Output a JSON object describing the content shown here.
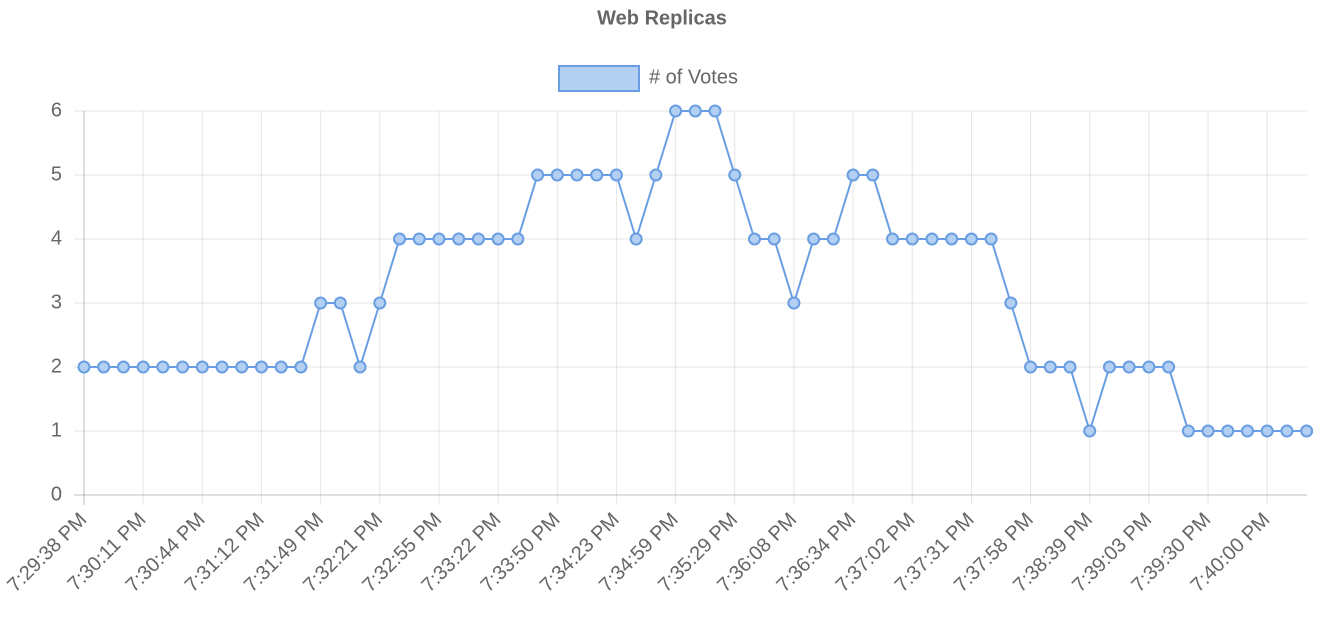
{
  "chart_data": {
    "type": "line",
    "title": "Web Replicas",
    "legend": {
      "position": "top",
      "entries": [
        "# of Votes"
      ]
    },
    "x_tick_labels": [
      "7:29:38 PM",
      "7:30:11 PM",
      "7:30:44 PM",
      "7:31:12 PM",
      "7:31:49 PM",
      "7:32:21 PM",
      "7:32:55 PM",
      "7:33:22 PM",
      "7:33:50 PM",
      "7:34:23 PM",
      "7:34:59 PM",
      "7:35:29 PM",
      "7:36:08 PM",
      "7:36:34 PM",
      "7:37:02 PM",
      "7:37:31 PM",
      "7:37:58 PM",
      "7:38:39 PM",
      "7:39:03 PM",
      "7:39:30 PM",
      "7:40:00 PM"
    ],
    "x_tick_every": 3,
    "ylim": [
      0,
      6
    ],
    "y_ticks": [
      0,
      1,
      2,
      3,
      4,
      5,
      6
    ],
    "grid": true,
    "series": [
      {
        "name": "# of Votes",
        "color": "#6a9ee2",
        "fill_color": "#b3cff2",
        "values": [
          2,
          2,
          2,
          2,
          2,
          2,
          2,
          2,
          2,
          2,
          2,
          2,
          3,
          3,
          2,
          3,
          4,
          4,
          4,
          4,
          4,
          4,
          4,
          5,
          5,
          5,
          5,
          5,
          4,
          5,
          6,
          6,
          6,
          5,
          4,
          4,
          3,
          4,
          4,
          5,
          5,
          4,
          4,
          4,
          4,
          4,
          4,
          3,
          2,
          2,
          2,
          1,
          2,
          2,
          2,
          2,
          1,
          1,
          1,
          1,
          1,
          1,
          1
        ]
      }
    ]
  }
}
